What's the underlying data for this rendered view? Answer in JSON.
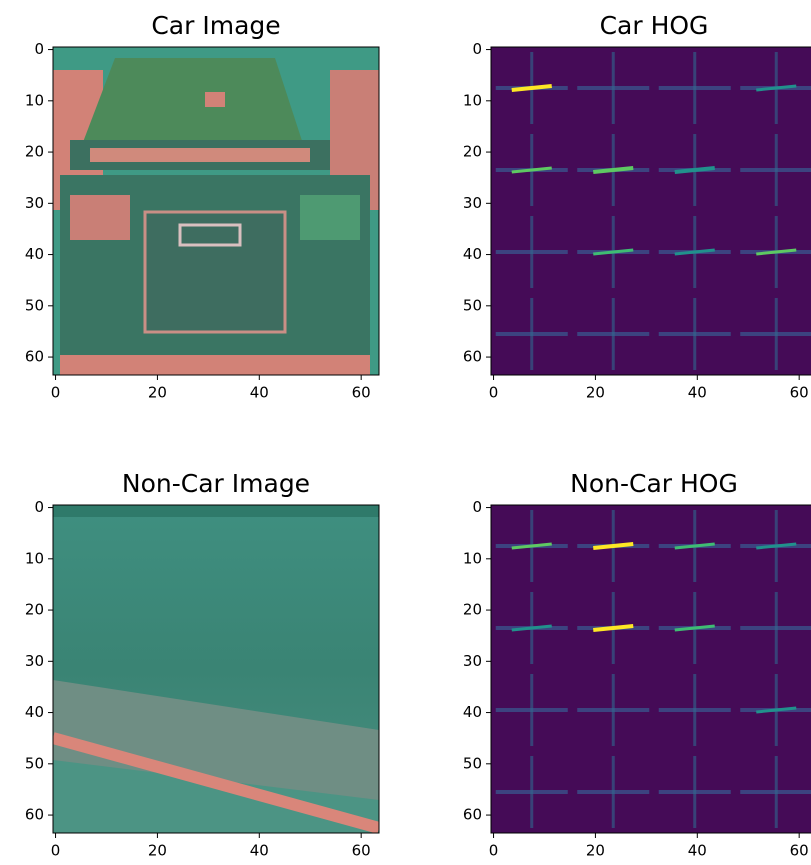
{
  "chart_data": [
    {
      "type": "image",
      "title": "Car Image",
      "xlim": [
        -0.5,
        63.5
      ],
      "ylim": [
        63.5,
        -0.5
      ],
      "xticks": [
        0,
        20,
        40,
        60
      ],
      "yticks": [
        0,
        10,
        20,
        30,
        40,
        50,
        60
      ]
    },
    {
      "type": "image",
      "title": "Car HOG",
      "xlim": [
        -0.5,
        63.5
      ],
      "ylim": [
        63.5,
        -0.5
      ],
      "xticks": [
        0,
        20,
        40,
        60
      ],
      "yticks": [
        0,
        10,
        20,
        30,
        40,
        50,
        60
      ]
    },
    {
      "type": "image",
      "title": "Non-Car Image",
      "xlim": [
        -0.5,
        63.5
      ],
      "ylim": [
        63.5,
        -0.5
      ],
      "xticks": [
        0,
        20,
        40,
        60
      ],
      "yticks": [
        0,
        10,
        20,
        30,
        40,
        50,
        60
      ]
    },
    {
      "type": "image",
      "title": "Non-Car HOG",
      "xlim": [
        -0.5,
        63.5
      ],
      "ylim": [
        63.5,
        -0.5
      ],
      "xticks": [
        0,
        20,
        40,
        60
      ],
      "yticks": [
        0,
        10,
        20,
        30,
        40,
        50,
        60
      ]
    }
  ]
}
